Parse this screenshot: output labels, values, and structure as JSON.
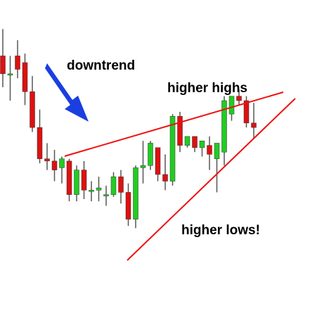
{
  "chart_data": {
    "type": "candlestick",
    "title": "",
    "xlabel": "",
    "ylabel": "",
    "grid": false,
    "colors": {
      "up": "#22cc22",
      "down": "#dd1111",
      "wick": "#555555",
      "trendline": "#ee1111",
      "arrow": "#1a3fe0"
    },
    "ylim": [
      0,
      100
    ],
    "candles": [
      {
        "o": 92,
        "h": 104,
        "l": 78,
        "c": 84
      },
      {
        "o": 84,
        "h": 92,
        "l": 72,
        "c": 84
      },
      {
        "o": 92,
        "h": 99,
        "l": 82,
        "c": 86
      },
      {
        "o": 89,
        "h": 93,
        "l": 70,
        "c": 76
      },
      {
        "o": 76,
        "h": 83,
        "l": 58,
        "c": 60
      },
      {
        "o": 60,
        "h": 68,
        "l": 44,
        "c": 46
      },
      {
        "o": 46,
        "h": 53,
        "l": 41,
        "c": 45
      },
      {
        "o": 45,
        "h": 50,
        "l": 36,
        "c": 41
      },
      {
        "o": 42,
        "h": 47,
        "l": 35,
        "c": 46
      },
      {
        "o": 45,
        "h": 46,
        "l": 27,
        "c": 30
      },
      {
        "o": 30,
        "h": 43,
        "l": 27,
        "c": 41
      },
      {
        "o": 41,
        "h": 45,
        "l": 28,
        "c": 32
      },
      {
        "o": 32,
        "h": 36,
        "l": 27,
        "c": 32
      },
      {
        "o": 32,
        "h": 38,
        "l": 27,
        "c": 33
      },
      {
        "o": 30,
        "h": 34,
        "l": 25,
        "c": 30
      },
      {
        "o": 30,
        "h": 40,
        "l": 29,
        "c": 38
      },
      {
        "o": 38,
        "h": 41,
        "l": 26,
        "c": 31
      },
      {
        "o": 31,
        "h": 35,
        "l": 16,
        "c": 19
      },
      {
        "o": 19,
        "h": 43,
        "l": 15,
        "c": 42
      },
      {
        "o": 42,
        "h": 54,
        "l": 35,
        "c": 43
      },
      {
        "o": 43,
        "h": 54,
        "l": 41,
        "c": 53
      },
      {
        "o": 51,
        "h": 51,
        "l": 36,
        "c": 39
      },
      {
        "o": 39,
        "h": 48,
        "l": 32,
        "c": 36
      },
      {
        "o": 36,
        "h": 66,
        "l": 34,
        "c": 65
      },
      {
        "o": 65,
        "h": 67,
        "l": 49,
        "c": 52
      },
      {
        "o": 52,
        "h": 56,
        "l": 51,
        "c": 56
      },
      {
        "o": 56,
        "h": 56,
        "l": 49,
        "c": 51
      },
      {
        "o": 51,
        "h": 54,
        "l": 47,
        "c": 54
      },
      {
        "o": 52,
        "h": 56,
        "l": 41,
        "c": 48
      },
      {
        "o": 46,
        "h": 53,
        "l": 31,
        "c": 53
      },
      {
        "o": 49,
        "h": 74,
        "l": 43,
        "c": 72
      },
      {
        "o": 66,
        "h": 74,
        "l": 63,
        "c": 74
      },
      {
        "o": 74,
        "h": 77,
        "l": 70,
        "c": 72
      },
      {
        "o": 72,
        "h": 74,
        "l": 60,
        "c": 62
      },
      {
        "o": 62,
        "h": 71,
        "l": 55,
        "c": 60
      }
    ],
    "annotations": [
      {
        "text": "downtrend",
        "type": "arrow-label"
      },
      {
        "text": "higher highs",
        "type": "resistance-line-label"
      },
      {
        "text": "higher lows!",
        "type": "support-line-label"
      }
    ]
  },
  "labels": {
    "downtrend": "downtrend",
    "higher_highs": "higher highs",
    "higher_lows": "higher lows!"
  }
}
